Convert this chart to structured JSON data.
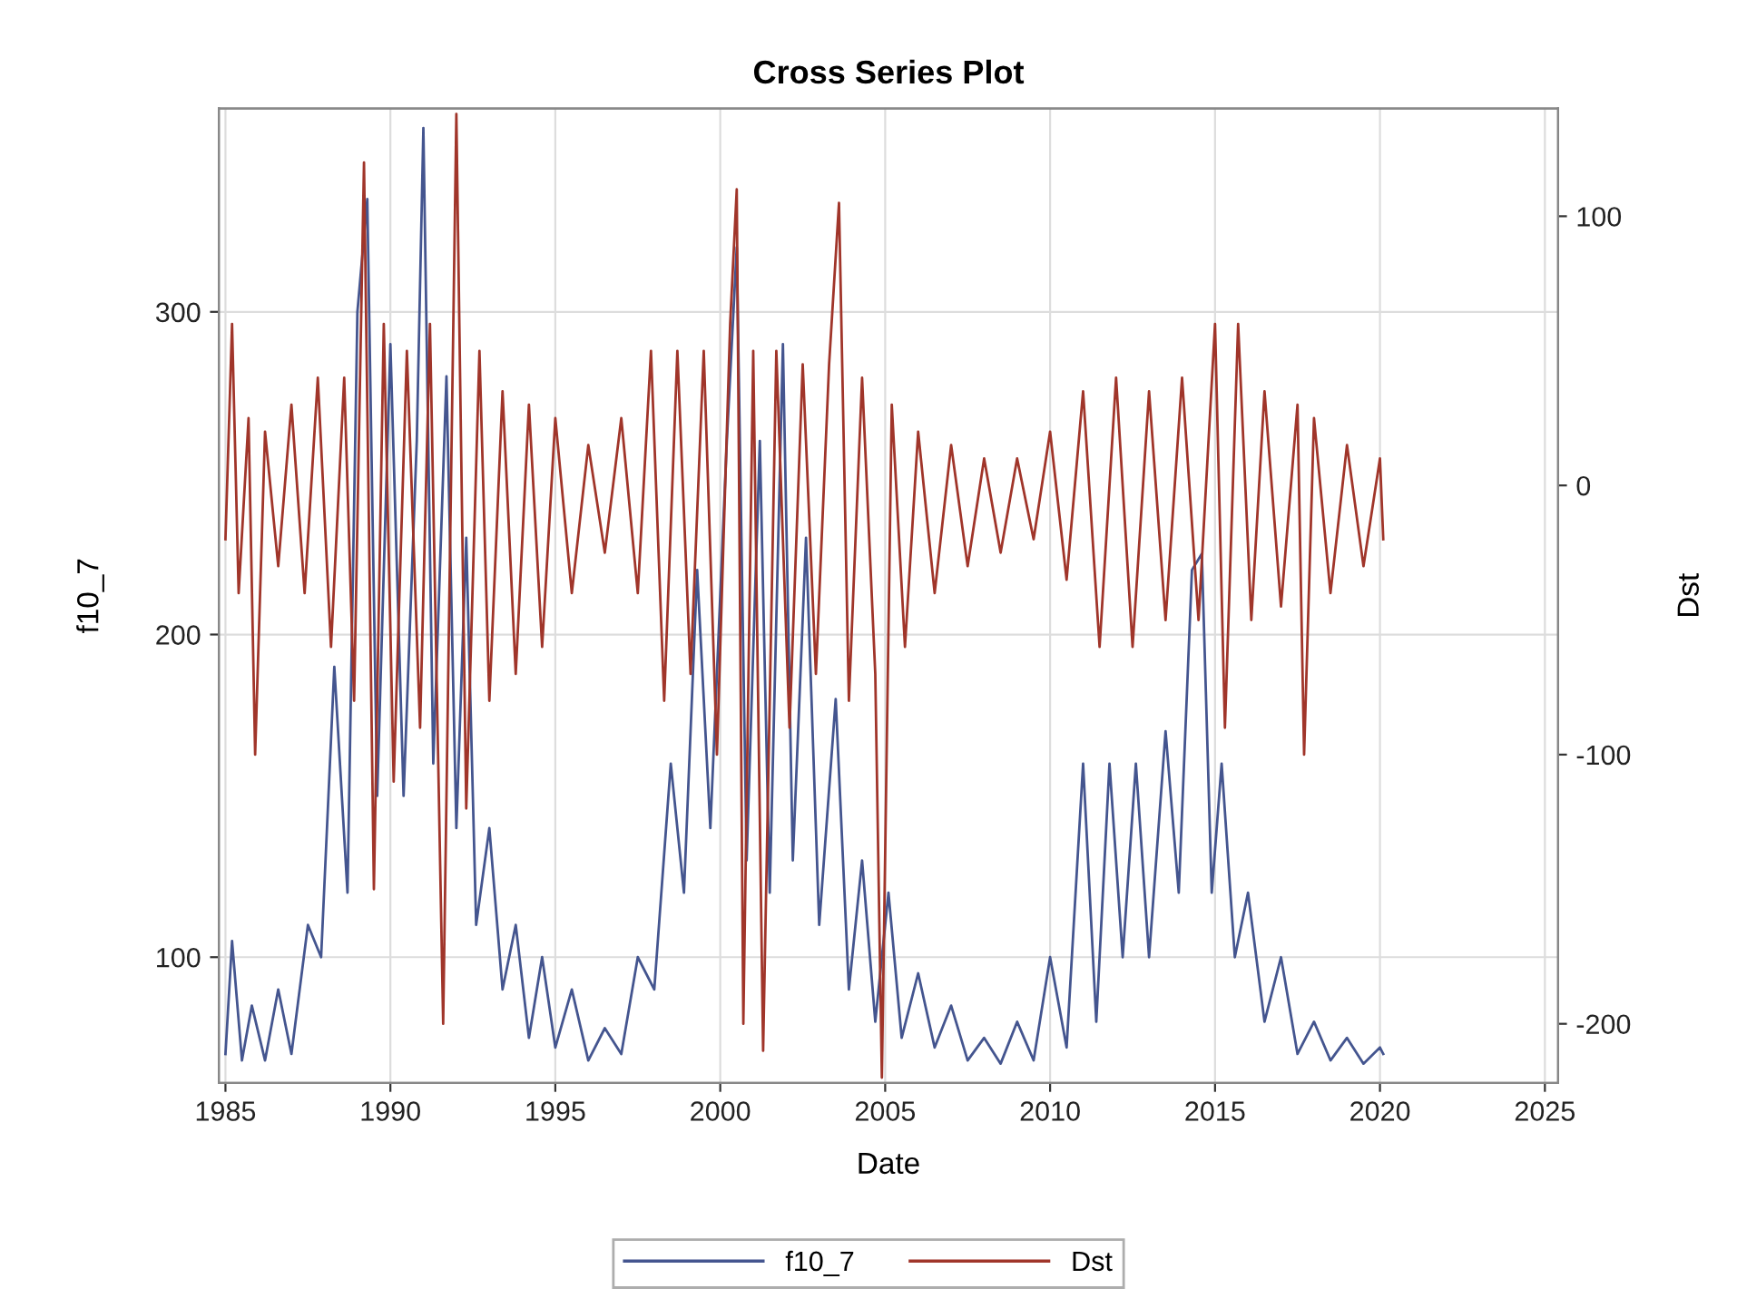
{
  "chart_data": {
    "type": "line",
    "title": "Cross Series Plot",
    "xlabel": "Date",
    "ylabel": "f10_7",
    "y2label": "Dst",
    "xlim": [
      1984.8,
      2025.4
    ],
    "xticks": [
      1985,
      1990,
      1995,
      2000,
      2005,
      2010,
      2015,
      2020,
      2025
    ],
    "ylim": [
      61,
      363
    ],
    "yticks": [
      100,
      200,
      300
    ],
    "y2lim": [
      -222,
      140
    ],
    "y2ticks": [
      -200,
      -100,
      0,
      100
    ],
    "grid": true,
    "legend": "bottom",
    "marker": "none",
    "line_style": "solid",
    "series": [
      {
        "name": "f10_7",
        "color": "#44558f",
        "x": [
          1985.0,
          1985.2,
          1985.5,
          1985.8,
          1986.2,
          1986.6,
          1987.0,
          1987.5,
          1987.9,
          1988.3,
          1988.7,
          1989.0,
          1989.3,
          1989.6,
          1990.0,
          1990.4,
          1990.8,
          1991.0,
          1991.3,
          1991.7,
          1992.0,
          1992.3,
          1992.6,
          1993.0,
          1993.4,
          1993.8,
          1994.2,
          1994.6,
          1995.0,
          1995.5,
          1996.0,
          1996.5,
          1997.0,
          1997.5,
          1998.0,
          1998.5,
          1998.9,
          1999.3,
          1999.7,
          2000.2,
          2000.5,
          2000.8,
          2001.2,
          2001.5,
          2001.9,
          2002.2,
          2002.6,
          2003.0,
          2003.5,
          2003.9,
          2004.3,
          2004.7,
          2005.1,
          2005.5,
          2006.0,
          2006.5,
          2007.0,
          2007.5,
          2008.0,
          2008.5,
          2009.0,
          2009.5,
          2010.0,
          2010.5,
          2011.0,
          2011.4,
          2011.8,
          2012.2,
          2012.6,
          2013.0,
          2013.5,
          2013.9,
          2014.3,
          2014.6,
          2014.9,
          2015.2,
          2015.6,
          2016.0,
          2016.5,
          2017.0,
          2017.5,
          2018.0,
          2018.5,
          2019.0,
          2019.5,
          2020.0,
          2020.1
        ],
        "values": [
          70,
          105,
          68,
          85,
          68,
          90,
          70,
          110,
          100,
          190,
          120,
          300,
          335,
          150,
          290,
          150,
          260,
          357,
          160,
          280,
          140,
          230,
          110,
          140,
          90,
          110,
          75,
          100,
          72,
          90,
          68,
          78,
          70,
          100,
          90,
          160,
          120,
          220,
          140,
          260,
          320,
          130,
          260,
          120,
          290,
          130,
          230,
          110,
          180,
          90,
          130,
          80,
          120,
          75,
          95,
          72,
          85,
          68,
          75,
          67,
          80,
          68,
          100,
          72,
          160,
          80,
          160,
          100,
          160,
          100,
          170,
          120,
          220,
          225,
          120,
          160,
          100,
          120,
          80,
          100,
          70,
          80,
          68,
          75,
          67,
          72,
          70
        ]
      },
      {
        "name": "Dst",
        "color": "#a0352a",
        "axis": "y2",
        "x": [
          1985.0,
          1985.2,
          1985.4,
          1985.7,
          1985.9,
          1986.2,
          1986.6,
          1987.0,
          1987.4,
          1987.8,
          1988.2,
          1988.6,
          1988.9,
          1989.2,
          1989.5,
          1989.8,
          1990.1,
          1990.5,
          1990.9,
          1991.2,
          1991.6,
          1992.0,
          1992.3,
          1992.7,
          1993.0,
          1993.4,
          1993.8,
          1994.2,
          1994.6,
          1995.0,
          1995.5,
          1996.0,
          1996.5,
          1997.0,
          1997.5,
          1997.9,
          1998.3,
          1998.7,
          1999.1,
          1999.5,
          1999.9,
          2000.3,
          2000.5,
          2000.7,
          2001.0,
          2001.3,
          2001.7,
          2002.1,
          2002.5,
          2002.9,
          2003.3,
          2003.6,
          2003.9,
          2004.3,
          2004.7,
          2004.9,
          2005.2,
          2005.6,
          2006.0,
          2006.5,
          2007.0,
          2007.5,
          2008.0,
          2008.5,
          2009.0,
          2009.5,
          2010.0,
          2010.5,
          2011.0,
          2011.5,
          2012.0,
          2012.5,
          2013.0,
          2013.5,
          2014.0,
          2014.5,
          2015.0,
          2015.3,
          2015.7,
          2016.1,
          2016.5,
          2017.0,
          2017.5,
          2017.7,
          2018.0,
          2018.5,
          2019.0,
          2019.5,
          2020.0,
          2020.1
        ],
        "values": [
          -20,
          60,
          -40,
          25,
          -100,
          20,
          -30,
          30,
          -40,
          40,
          -60,
          40,
          -80,
          120,
          -150,
          60,
          -110,
          50,
          -90,
          60,
          -200,
          138,
          -120,
          50,
          -80,
          35,
          -70,
          30,
          -60,
          25,
          -40,
          15,
          -25,
          25,
          -40,
          50,
          -80,
          50,
          -70,
          50,
          -100,
          60,
          110,
          -200,
          50,
          -210,
          50,
          -90,
          45,
          -70,
          45,
          105,
          -80,
          40,
          -70,
          -220,
          30,
          -60,
          20,
          -40,
          15,
          -30,
          10,
          -25,
          10,
          -20,
          20,
          -35,
          35,
          -60,
          40,
          -60,
          35,
          -50,
          40,
          -50,
          60,
          -90,
          60,
          -50,
          35,
          -45,
          30,
          -100,
          25,
          -40,
          15,
          -30,
          10,
          -20
        ]
      }
    ]
  }
}
